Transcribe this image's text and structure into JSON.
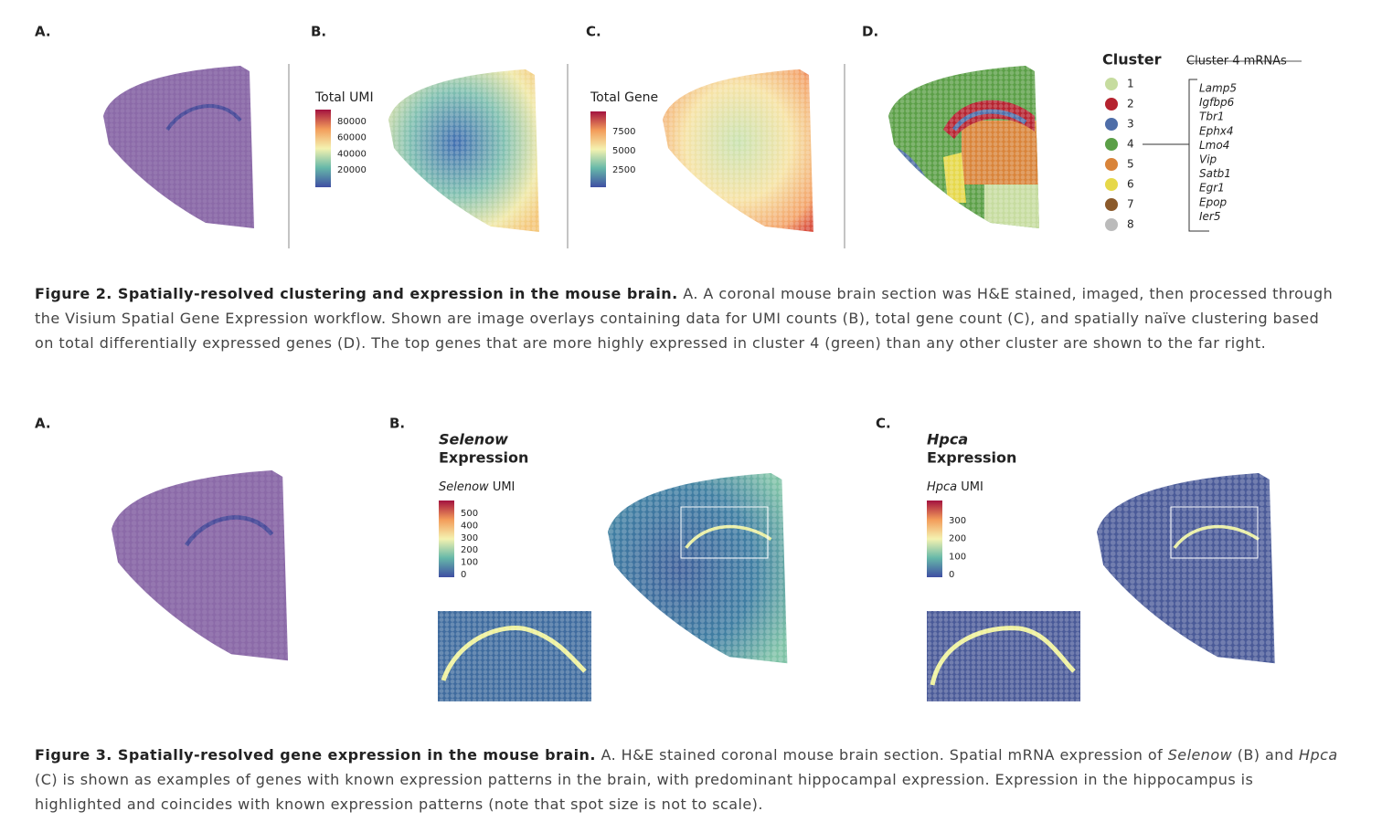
{
  "figure2": {
    "panels": {
      "a": "A.",
      "b": "B.",
      "c": "C.",
      "d": "D."
    },
    "umi": {
      "title": "Total UMI",
      "ticks": [
        80000,
        60000,
        40000,
        20000
      ]
    },
    "gene": {
      "title": "Total Gene",
      "ticks": [
        7500,
        5000,
        2500
      ]
    },
    "legend": {
      "title": "Cluster",
      "items": [
        {
          "label": "1",
          "color": "#c6dc9f"
        },
        {
          "label": "2",
          "color": "#b5232f"
        },
        {
          "label": "3",
          "color": "#4f6ea8"
        },
        {
          "label": "4",
          "color": "#5b9f47"
        },
        {
          "label": "5",
          "color": "#d9843a"
        },
        {
          "label": "6",
          "color": "#e6d84a"
        },
        {
          "label": "7",
          "color": "#8b5a2b"
        },
        {
          "label": "8",
          "color": "#bbbbbb"
        }
      ]
    },
    "mrnas": {
      "title": "Cluster 4 mRNAs",
      "genes": [
        "Lamp5",
        "Igfbp6",
        "Tbr1",
        "Ephx4",
        "Lmo4",
        "Vip",
        "Satb1",
        "Egr1",
        "Epop",
        "Ier5"
      ]
    },
    "caption": {
      "bold": "Figure 2. Spatially-resolved clustering and expression in the mouse brain.",
      "text": "A. A coronal mouse brain section was H&E stained, imaged, then processed through the Visium Spatial Gene Expression workflow. Shown are image overlays containing data for UMI counts (B), total gene count (C), and spatially naïve clustering based on total differentially expressed genes (D). The top genes that are more highly expressed in cluster 4 (green) than any other cluster are shown to the far right."
    }
  },
  "figure3": {
    "panels": {
      "a": "A.",
      "b": "B.",
      "c": "C."
    },
    "selenow": {
      "gene": "Selenow",
      "heading": "Expression",
      "unit": "UMI",
      "ticks": [
        500,
        400,
        300,
        200,
        100,
        0
      ]
    },
    "hpca": {
      "gene": "Hpca",
      "heading": "Expression",
      "unit": "UMI",
      "ticks": [
        300,
        200,
        100,
        0
      ]
    },
    "caption": {
      "bold": "Figure 3. Spatially-resolved gene expression in the mouse brain.",
      "parts": [
        "A. H&E stained coronal mouse brain section. Spatial mRNA expression of ",
        "Selenow",
        " (B) and ",
        "Hpca",
        " (C) is shown as examples of genes with known expression patterns in the brain, with predominant hippocampal expression. Expression in the hippocampus is highlighted and coincides with known expression patterns (note that spot size is not to scale)."
      ]
    }
  }
}
